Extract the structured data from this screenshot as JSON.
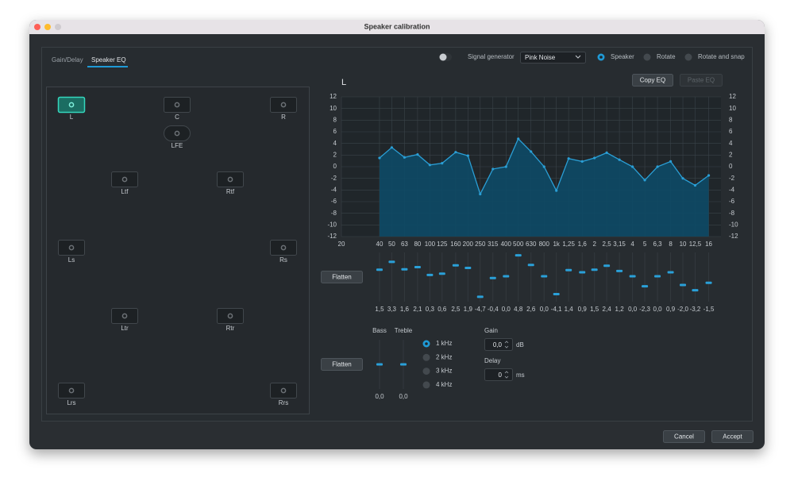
{
  "window": {
    "title": "Speaker calibration"
  },
  "tabs": [
    "Gain/Delay",
    "Speaker EQ"
  ],
  "toolbar": {
    "signal_generator": "Signal generator",
    "signal_type": "Pink Noise",
    "modes": [
      "Speaker",
      "Rotate",
      "Rotate and snap"
    ]
  },
  "speakers": [
    "L",
    "C",
    "R",
    "LFE",
    "Ltf",
    "Rtf",
    "Ls",
    "Rs",
    "Ltr",
    "Rtr",
    "Lrs",
    "Rrs"
  ],
  "channel": "L",
  "buttons": {
    "copy": "Copy EQ",
    "paste": "Paste EQ",
    "flatten": "Flatten",
    "cancel": "Cancel",
    "accept": "Accept"
  },
  "chart_data": {
    "type": "area",
    "x_scale": "log",
    "grid": true,
    "color": "#2a9fd6",
    "fill": "#0d4a66",
    "xlim": [
      20,
      20000
    ],
    "xticks": [
      20,
      40,
      50,
      63,
      80,
      100,
      125,
      160,
      200,
      250,
      315,
      400,
      500,
      630,
      800,
      {
        "value": 1000,
        "label": "1k"
      },
      {
        "value": 1250,
        "label": "1,25"
      },
      {
        "value": 1600,
        "label": "1,6"
      },
      {
        "value": 2000,
        "label": "2"
      },
      {
        "value": 2500,
        "label": "2,5"
      },
      {
        "value": 3150,
        "label": "3,15"
      },
      {
        "value": 4000,
        "label": "4"
      },
      {
        "value": 5000,
        "label": "5"
      },
      {
        "value": 6300,
        "label": "6,3"
      },
      {
        "value": 8000,
        "label": "8"
      },
      {
        "value": 10000,
        "label": "10"
      },
      {
        "value": 12500,
        "label": "12,5"
      },
      {
        "value": 16000,
        "label": "16"
      }
    ],
    "ylim": [
      -12,
      12
    ],
    "yticks": [
      12,
      10,
      8,
      6,
      4,
      2,
      0,
      -2,
      -4,
      -6,
      -8,
      -10,
      -12
    ],
    "x": [
      40,
      50,
      63,
      80,
      100,
      125,
      160,
      200,
      250,
      315,
      400,
      500,
      630,
      800,
      1000,
      1250,
      1600,
      2000,
      2500,
      3150,
      4000,
      5000,
      6300,
      8000,
      10000,
      12500,
      16000
    ],
    "values": [
      1.5,
      3.3,
      1.6,
      2.1,
      0.3,
      0.6,
      2.5,
      1.9,
      -4.7,
      -0.4,
      0.0,
      4.8,
      2.6,
      0.0,
      -4.1,
      1.4,
      0.9,
      1.5,
      2.4,
      1.2,
      0.0,
      -2.3,
      0.0,
      0.9,
      -2.0,
      -3.2,
      -1.5
    ],
    "value_labels": [
      "1,5",
      "3,3",
      "1,6",
      "2,1",
      "0,3",
      "0,6",
      "2,5",
      "1,9",
      "-4,7",
      "-0,4",
      "0,0",
      "4,8",
      "2,6",
      "0,0",
      "-4,1",
      "1,4",
      "0,9",
      "1,5",
      "2,4",
      "1,2",
      "0,0",
      "-2,3",
      "0,0",
      "0,9",
      "-2,0",
      "-3,2",
      "-1,5"
    ]
  },
  "tone": {
    "names": [
      "Bass",
      "Treble"
    ],
    "values": [
      0,
      0
    ],
    "value_labels": [
      "0,0",
      "0,0"
    ],
    "frequencies": [
      "1 kHz",
      "2 kHz",
      "3 kHz",
      "4 kHz"
    ],
    "gain": "Gain",
    "gain_value": "0,0",
    "gain_unit": "dB",
    "delay": "Delay",
    "delay_value": "0",
    "delay_unit": "ms"
  }
}
